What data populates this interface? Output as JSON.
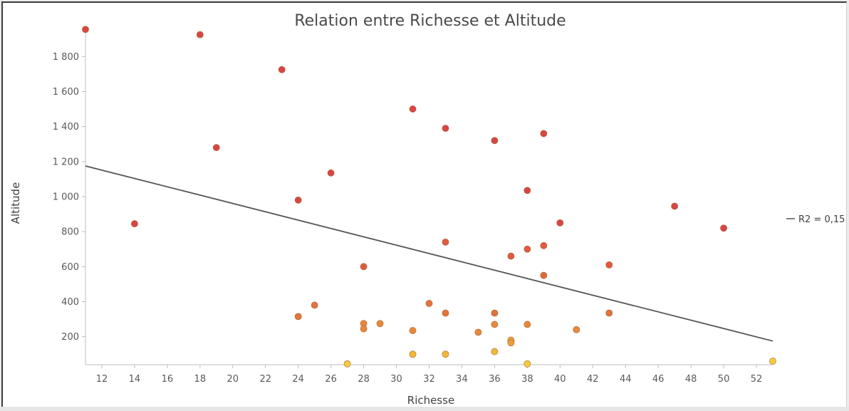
{
  "chart_data": {
    "type": "scatter",
    "title": "Relation entre Richesse et Altitude",
    "xlabel": "Richesse",
    "ylabel": "Altitude",
    "xlim": [
      11,
      53
    ],
    "ylim": [
      40,
      1960
    ],
    "x_ticks": [
      12,
      14,
      16,
      18,
      20,
      22,
      24,
      26,
      28,
      30,
      32,
      34,
      36,
      38,
      40,
      42,
      44,
      46,
      48,
      50,
      52
    ],
    "y_ticks": [
      200,
      400,
      600,
      800,
      1000,
      1200,
      1400,
      1600,
      1800
    ],
    "y_tick_labels": [
      "200",
      "400",
      "600",
      "800",
      "1 000",
      "1 200",
      "1 400",
      "1 600",
      "1 800"
    ],
    "grid": false,
    "legend": {
      "position": "right",
      "label": "R2 = 0,15"
    },
    "trendline": {
      "x": [
        11,
        53
      ],
      "y": [
        1175,
        175
      ],
      "color": "#555555"
    },
    "points": [
      {
        "x": 11,
        "y": 1955,
        "color": "#d94545"
      },
      {
        "x": 18,
        "y": 1925,
        "color": "#d94545"
      },
      {
        "x": 23,
        "y": 1725,
        "color": "#d94545"
      },
      {
        "x": 19,
        "y": 1280,
        "color": "#d94545"
      },
      {
        "x": 26,
        "y": 1135,
        "color": "#d94545"
      },
      {
        "x": 24,
        "y": 980,
        "color": "#d94545"
      },
      {
        "x": 14,
        "y": 845,
        "color": "#d94545"
      },
      {
        "x": 31,
        "y": 1500,
        "color": "#d94545"
      },
      {
        "x": 33,
        "y": 1390,
        "color": "#d94545"
      },
      {
        "x": 36,
        "y": 1320,
        "color": "#d94545"
      },
      {
        "x": 39,
        "y": 1360,
        "color": "#d94545"
      },
      {
        "x": 38,
        "y": 1035,
        "color": "#d94545"
      },
      {
        "x": 47,
        "y": 945,
        "color": "#d94545"
      },
      {
        "x": 50,
        "y": 820,
        "color": "#d94545"
      },
      {
        "x": 40,
        "y": 850,
        "color": "#d94545"
      },
      {
        "x": 33,
        "y": 740,
        "color": "#e05a40"
      },
      {
        "x": 39,
        "y": 720,
        "color": "#e05a40"
      },
      {
        "x": 38,
        "y": 700,
        "color": "#e05a40"
      },
      {
        "x": 37,
        "y": 660,
        "color": "#e05a40"
      },
      {
        "x": 43,
        "y": 610,
        "color": "#e05a40"
      },
      {
        "x": 28,
        "y": 600,
        "color": "#e05a40"
      },
      {
        "x": 39,
        "y": 550,
        "color": "#e06a3c"
      },
      {
        "x": 32,
        "y": 390,
        "color": "#e2733a"
      },
      {
        "x": 25,
        "y": 380,
        "color": "#e2733a"
      },
      {
        "x": 33,
        "y": 335,
        "color": "#e2733a"
      },
      {
        "x": 36,
        "y": 335,
        "color": "#e2733a"
      },
      {
        "x": 43,
        "y": 335,
        "color": "#e2733a"
      },
      {
        "x": 24,
        "y": 315,
        "color": "#e2733a"
      },
      {
        "x": 28,
        "y": 275,
        "color": "#e8883a"
      },
      {
        "x": 29,
        "y": 275,
        "color": "#e8883a"
      },
      {
        "x": 36,
        "y": 270,
        "color": "#e8883a"
      },
      {
        "x": 38,
        "y": 270,
        "color": "#e8883a"
      },
      {
        "x": 28,
        "y": 245,
        "color": "#e8883a"
      },
      {
        "x": 41,
        "y": 240,
        "color": "#e8883a"
      },
      {
        "x": 31,
        "y": 235,
        "color": "#e8883a"
      },
      {
        "x": 35,
        "y": 225,
        "color": "#e8883a"
      },
      {
        "x": 37,
        "y": 180,
        "color": "#ec9d3a"
      },
      {
        "x": 37,
        "y": 165,
        "color": "#ec9d3a"
      },
      {
        "x": 36,
        "y": 115,
        "color": "#f0b83a"
      },
      {
        "x": 31,
        "y": 100,
        "color": "#f0b83a"
      },
      {
        "x": 33,
        "y": 100,
        "color": "#f0b83a"
      },
      {
        "x": 53,
        "y": 60,
        "color": "#f2cc3a"
      },
      {
        "x": 27,
        "y": 45,
        "color": "#f2cc3a"
      },
      {
        "x": 38,
        "y": 45,
        "color": "#f2cc3a"
      }
    ]
  }
}
